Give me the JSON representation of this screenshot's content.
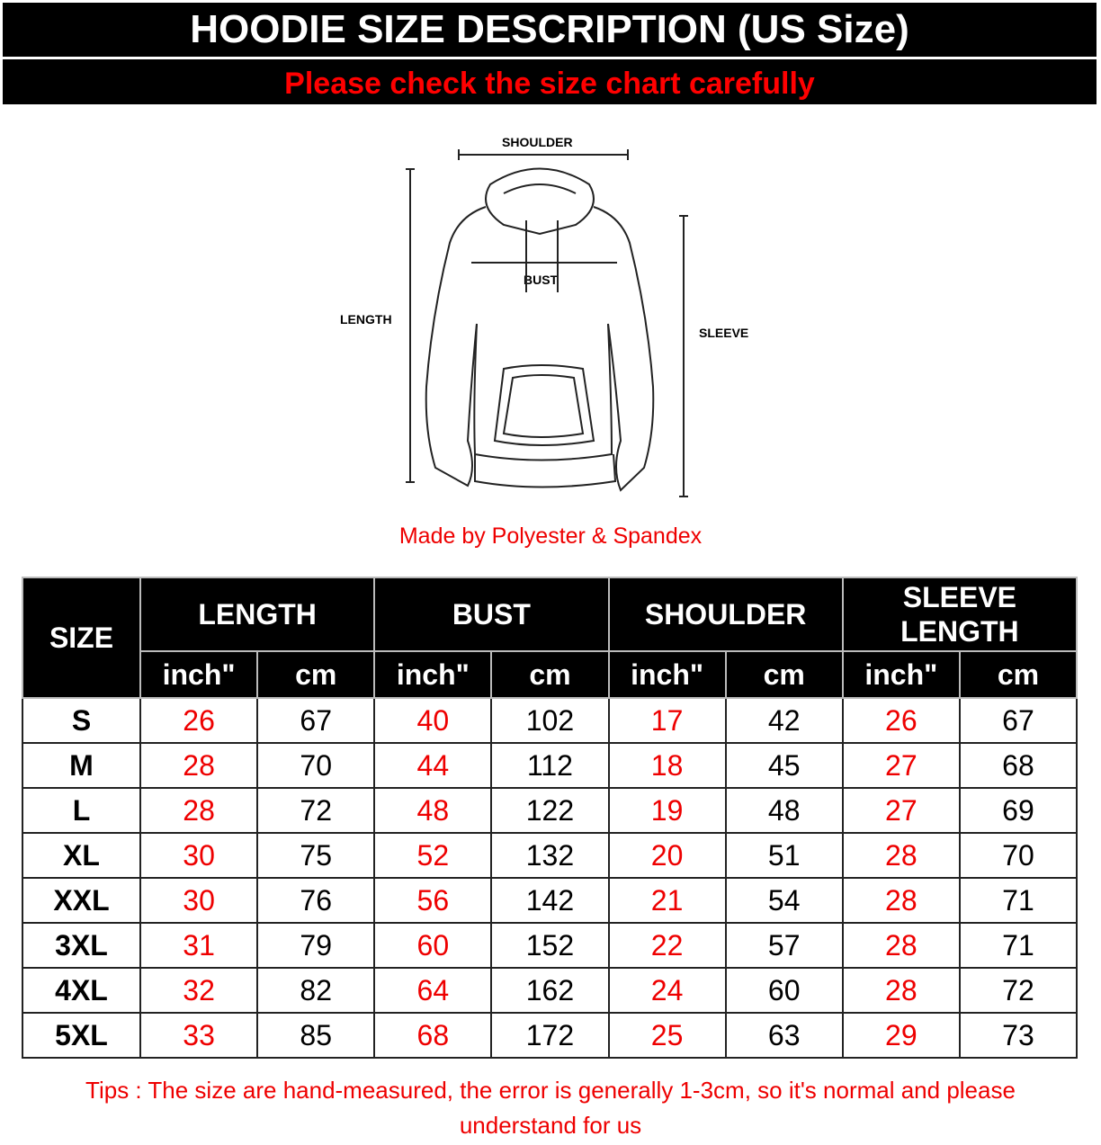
{
  "header": {
    "title": "HOODIE SIZE DESCRIPTION (US Size)",
    "subtitle": "Please check the size chart carefully"
  },
  "diagram": {
    "shoulder": "SHOULDER",
    "bust": "BUST",
    "length": "LENGTH",
    "sleeve": "SLEEVE"
  },
  "material": "Made by Polyester & Spandex",
  "table": {
    "size_header": "SIZE",
    "groups": [
      "LENGTH",
      "BUST",
      "SHOULDER",
      "SLEEVE LENGTH"
    ],
    "units": [
      "inch\"",
      "cm",
      "inch\"",
      "cm",
      "inch\"",
      "cm",
      "inch\"",
      "cm"
    ],
    "rows": [
      [
        "S",
        "26",
        "67",
        "40",
        "102",
        "17",
        "42",
        "26",
        "67"
      ],
      [
        "M",
        "28",
        "70",
        "44",
        "112",
        "18",
        "45",
        "27",
        "68"
      ],
      [
        "L",
        "28",
        "72",
        "48",
        "122",
        "19",
        "48",
        "27",
        "69"
      ],
      [
        "XL",
        "30",
        "75",
        "52",
        "132",
        "20",
        "51",
        "28",
        "70"
      ],
      [
        "XXL",
        "30",
        "76",
        "56",
        "142",
        "21",
        "54",
        "28",
        "71"
      ],
      [
        "3XL",
        "31",
        "79",
        "60",
        "152",
        "22",
        "57",
        "28",
        "71"
      ],
      [
        "4XL",
        "32",
        "82",
        "64",
        "162",
        "24",
        "60",
        "28",
        "72"
      ],
      [
        "5XL",
        "33",
        "85",
        "68",
        "172",
        "25",
        "63",
        "29",
        "73"
      ]
    ]
  },
  "tips": "Tips : The size are hand-measured, the error is generally 1-3cm, so it's normal and please understand for us",
  "colors": {
    "header_bg": "#000000",
    "accent_red": "#ff0000"
  }
}
